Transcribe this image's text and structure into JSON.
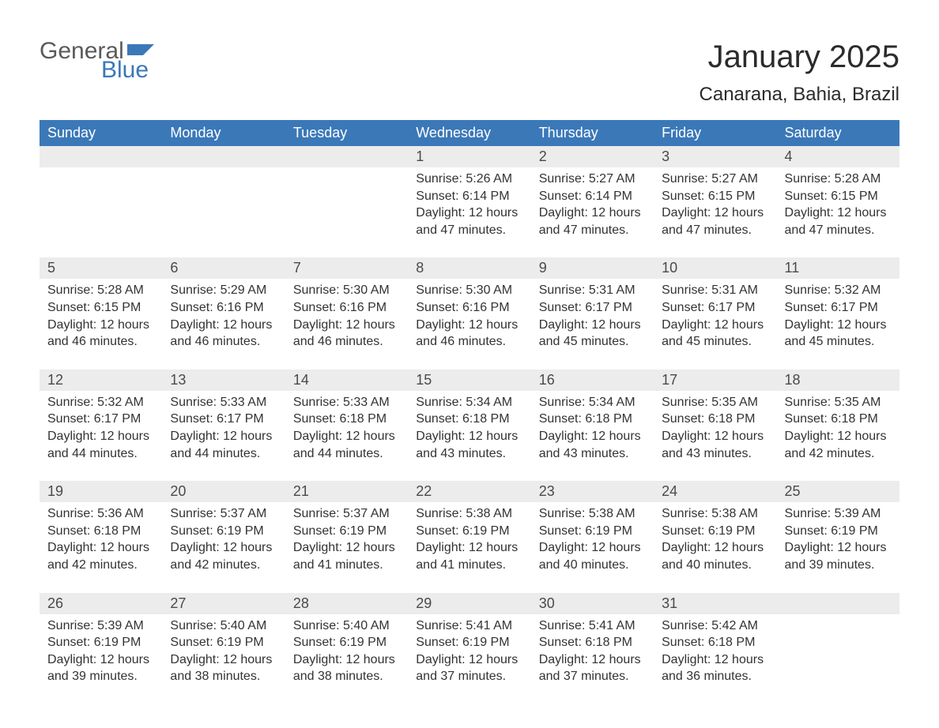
{
  "logo": {
    "text1": "General",
    "text2": "Blue",
    "flag_color": "#3b78b8"
  },
  "title": "January 2025",
  "location": "Canarana, Bahia, Brazil",
  "colors": {
    "header_bg": "#3b78b8",
    "header_text": "#ffffff",
    "daynum_bg": "#ececec",
    "row_border": "#3b78b8",
    "body_text": "#333333",
    "page_bg": "#ffffff"
  },
  "fonts": {
    "title_size_pt": 30,
    "location_size_pt": 18,
    "header_size_pt": 14,
    "daynum_size_pt": 14,
    "body_size_pt": 12
  },
  "weekdays": [
    "Sunday",
    "Monday",
    "Tuesday",
    "Wednesday",
    "Thursday",
    "Friday",
    "Saturday"
  ],
  "weeks": [
    [
      null,
      null,
      null,
      {
        "day": "1",
        "sunrise": "Sunrise: 5:26 AM",
        "sunset": "Sunset: 6:14 PM",
        "daylight": "Daylight: 12 hours and 47 minutes."
      },
      {
        "day": "2",
        "sunrise": "Sunrise: 5:27 AM",
        "sunset": "Sunset: 6:14 PM",
        "daylight": "Daylight: 12 hours and 47 minutes."
      },
      {
        "day": "3",
        "sunrise": "Sunrise: 5:27 AM",
        "sunset": "Sunset: 6:15 PM",
        "daylight": "Daylight: 12 hours and 47 minutes."
      },
      {
        "day": "4",
        "sunrise": "Sunrise: 5:28 AM",
        "sunset": "Sunset: 6:15 PM",
        "daylight": "Daylight: 12 hours and 47 minutes."
      }
    ],
    [
      {
        "day": "5",
        "sunrise": "Sunrise: 5:28 AM",
        "sunset": "Sunset: 6:15 PM",
        "daylight": "Daylight: 12 hours and 46 minutes."
      },
      {
        "day": "6",
        "sunrise": "Sunrise: 5:29 AM",
        "sunset": "Sunset: 6:16 PM",
        "daylight": "Daylight: 12 hours and 46 minutes."
      },
      {
        "day": "7",
        "sunrise": "Sunrise: 5:30 AM",
        "sunset": "Sunset: 6:16 PM",
        "daylight": "Daylight: 12 hours and 46 minutes."
      },
      {
        "day": "8",
        "sunrise": "Sunrise: 5:30 AM",
        "sunset": "Sunset: 6:16 PM",
        "daylight": "Daylight: 12 hours and 46 minutes."
      },
      {
        "day": "9",
        "sunrise": "Sunrise: 5:31 AM",
        "sunset": "Sunset: 6:17 PM",
        "daylight": "Daylight: 12 hours and 45 minutes."
      },
      {
        "day": "10",
        "sunrise": "Sunrise: 5:31 AM",
        "sunset": "Sunset: 6:17 PM",
        "daylight": "Daylight: 12 hours and 45 minutes."
      },
      {
        "day": "11",
        "sunrise": "Sunrise: 5:32 AM",
        "sunset": "Sunset: 6:17 PM",
        "daylight": "Daylight: 12 hours and 45 minutes."
      }
    ],
    [
      {
        "day": "12",
        "sunrise": "Sunrise: 5:32 AM",
        "sunset": "Sunset: 6:17 PM",
        "daylight": "Daylight: 12 hours and 44 minutes."
      },
      {
        "day": "13",
        "sunrise": "Sunrise: 5:33 AM",
        "sunset": "Sunset: 6:17 PM",
        "daylight": "Daylight: 12 hours and 44 minutes."
      },
      {
        "day": "14",
        "sunrise": "Sunrise: 5:33 AM",
        "sunset": "Sunset: 6:18 PM",
        "daylight": "Daylight: 12 hours and 44 minutes."
      },
      {
        "day": "15",
        "sunrise": "Sunrise: 5:34 AM",
        "sunset": "Sunset: 6:18 PM",
        "daylight": "Daylight: 12 hours and 43 minutes."
      },
      {
        "day": "16",
        "sunrise": "Sunrise: 5:34 AM",
        "sunset": "Sunset: 6:18 PM",
        "daylight": "Daylight: 12 hours and 43 minutes."
      },
      {
        "day": "17",
        "sunrise": "Sunrise: 5:35 AM",
        "sunset": "Sunset: 6:18 PM",
        "daylight": "Daylight: 12 hours and 43 minutes."
      },
      {
        "day": "18",
        "sunrise": "Sunrise: 5:35 AM",
        "sunset": "Sunset: 6:18 PM",
        "daylight": "Daylight: 12 hours and 42 minutes."
      }
    ],
    [
      {
        "day": "19",
        "sunrise": "Sunrise: 5:36 AM",
        "sunset": "Sunset: 6:18 PM",
        "daylight": "Daylight: 12 hours and 42 minutes."
      },
      {
        "day": "20",
        "sunrise": "Sunrise: 5:37 AM",
        "sunset": "Sunset: 6:19 PM",
        "daylight": "Daylight: 12 hours and 42 minutes."
      },
      {
        "day": "21",
        "sunrise": "Sunrise: 5:37 AM",
        "sunset": "Sunset: 6:19 PM",
        "daylight": "Daylight: 12 hours and 41 minutes."
      },
      {
        "day": "22",
        "sunrise": "Sunrise: 5:38 AM",
        "sunset": "Sunset: 6:19 PM",
        "daylight": "Daylight: 12 hours and 41 minutes."
      },
      {
        "day": "23",
        "sunrise": "Sunrise: 5:38 AM",
        "sunset": "Sunset: 6:19 PM",
        "daylight": "Daylight: 12 hours and 40 minutes."
      },
      {
        "day": "24",
        "sunrise": "Sunrise: 5:38 AM",
        "sunset": "Sunset: 6:19 PM",
        "daylight": "Daylight: 12 hours and 40 minutes."
      },
      {
        "day": "25",
        "sunrise": "Sunrise: 5:39 AM",
        "sunset": "Sunset: 6:19 PM",
        "daylight": "Daylight: 12 hours and 39 minutes."
      }
    ],
    [
      {
        "day": "26",
        "sunrise": "Sunrise: 5:39 AM",
        "sunset": "Sunset: 6:19 PM",
        "daylight": "Daylight: 12 hours and 39 minutes."
      },
      {
        "day": "27",
        "sunrise": "Sunrise: 5:40 AM",
        "sunset": "Sunset: 6:19 PM",
        "daylight": "Daylight: 12 hours and 38 minutes."
      },
      {
        "day": "28",
        "sunrise": "Sunrise: 5:40 AM",
        "sunset": "Sunset: 6:19 PM",
        "daylight": "Daylight: 12 hours and 38 minutes."
      },
      {
        "day": "29",
        "sunrise": "Sunrise: 5:41 AM",
        "sunset": "Sunset: 6:19 PM",
        "daylight": "Daylight: 12 hours and 37 minutes."
      },
      {
        "day": "30",
        "sunrise": "Sunrise: 5:41 AM",
        "sunset": "Sunset: 6:18 PM",
        "daylight": "Daylight: 12 hours and 37 minutes."
      },
      {
        "day": "31",
        "sunrise": "Sunrise: 5:42 AM",
        "sunset": "Sunset: 6:18 PM",
        "daylight": "Daylight: 12 hours and 36 minutes."
      },
      null
    ]
  ]
}
